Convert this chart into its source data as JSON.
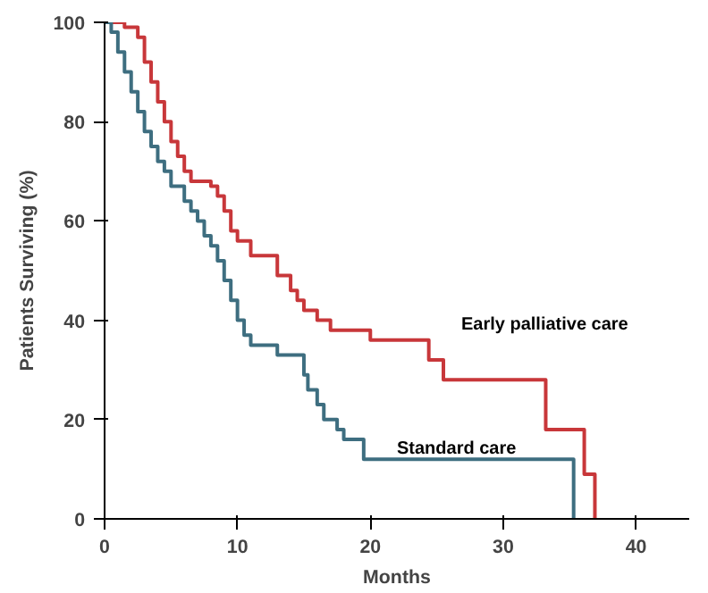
{
  "chart_data": {
    "type": "step",
    "xlabel": "Months",
    "ylabel": "Patients Surviving (%)",
    "xlim": [
      0,
      44
    ],
    "ylim": [
      0,
      100
    ],
    "xticks": [
      0,
      10,
      20,
      30,
      40
    ],
    "yticks": [
      0,
      20,
      40,
      60,
      80,
      100
    ],
    "grid": false,
    "legend": false,
    "series": [
      {
        "name": "Early palliative care",
        "color": "#c8373a",
        "x": [
          0,
          1.5,
          2.5,
          3,
          3.5,
          4,
          4.5,
          5,
          5.5,
          6,
          6.5,
          8,
          8.5,
          9,
          9.5,
          10,
          11,
          13,
          14,
          14.5,
          15,
          16,
          17,
          20,
          24.4,
          25.5,
          33.2,
          36.1,
          36.9
        ],
        "values": [
          100,
          99,
          97,
          92,
          88,
          84,
          80,
          76,
          73,
          70,
          68,
          67,
          65,
          62,
          58,
          56,
          53,
          49,
          46,
          44,
          42,
          40,
          38,
          36,
          32,
          28,
          18,
          9,
          0
        ]
      },
      {
        "name": "Standard care",
        "color": "#3e6e80",
        "x": [
          0,
          0.5,
          1,
          1.5,
          2,
          2.5,
          3,
          3.5,
          4,
          4.5,
          5,
          6,
          6.5,
          7,
          7.5,
          8,
          8.5,
          9,
          9.5,
          10,
          10.5,
          11,
          13,
          15,
          15.3,
          16,
          16.5,
          17.5,
          18,
          19.5,
          35.3
        ],
        "values": [
          100,
          98,
          94,
          90,
          86,
          82,
          78,
          75,
          72,
          70,
          67,
          64,
          62,
          60,
          57,
          55,
          52,
          48,
          44,
          40,
          37,
          35,
          33,
          29,
          26,
          23,
          20,
          18,
          16,
          12,
          0
        ]
      }
    ]
  }
}
